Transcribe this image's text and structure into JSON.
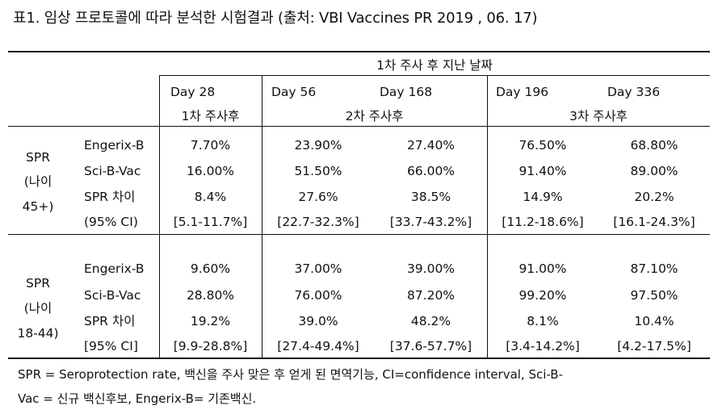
{
  "caption": "표1. 임상 프로토콜에 따라 분석한 시험결과 (출처: VBI Vaccines PR 2019 , 06. 17)",
  "header": {
    "days_after": "1차 주사 후 지난 날짜",
    "days": [
      "Day 28",
      "Day 56",
      "Day 168",
      "Day 196",
      "Day 336"
    ],
    "dose_groups": [
      "1차 주사후",
      "2차 주사후",
      "3차 주사후"
    ]
  },
  "groups": [
    {
      "group_label": [
        "SPR",
        "(나이",
        "45+)"
      ],
      "rows": [
        {
          "label": "Engerix-B",
          "values": [
            "7.70%",
            "23.90%",
            "27.40%",
            "76.50%",
            "68.80%"
          ]
        },
        {
          "label": "Sci-B-Vac",
          "values": [
            "16.00%",
            "51.50%",
            "66.00%",
            "91.40%",
            "89.00%"
          ]
        },
        {
          "label": "SPR 차이",
          "values": [
            "8.4%",
            "27.6%",
            "38.5%",
            "14.9%",
            "20.2%"
          ]
        },
        {
          "label": "(95% CI)",
          "values": [
            "[5.1-11.7%]",
            "[22.7-32.3%]",
            "[33.7-43.2%]",
            "[11.2-18.6%]",
            "[16.1-24.3%]"
          ]
        }
      ]
    },
    {
      "group_label": [
        "SPR",
        "(나이",
        "18-44)"
      ],
      "rows": [
        {
          "label": "Engerix-B",
          "values": [
            "9.60%",
            "37.00%",
            "39.00%",
            "91.00%",
            "87.10%"
          ]
        },
        {
          "label": "Sci-B-Vac",
          "values": [
            "28.80%",
            "76.00%",
            "87.20%",
            "99.20%",
            "97.50%"
          ]
        },
        {
          "label": "SPR 차이",
          "values": [
            "19.2%",
            "39.0%",
            "48.2%",
            "8.1%",
            "10.4%"
          ]
        },
        {
          "label": "[95% CI]",
          "values": [
            "[9.9-28.8%]",
            "[27.4-49.4%]",
            "[37.6-57.7%]",
            "[3.4-14.2%]",
            "[4.2-17.5%]"
          ]
        }
      ]
    }
  ],
  "footnote": [
    "SPR = Seroprotection rate, 백신을 주사 맞은 후 얻게 된 면역기능, CI=confidence interval, Sci-B-",
    "Vac = 신규 백신후보, Engerix-B= 기존백신."
  ]
}
